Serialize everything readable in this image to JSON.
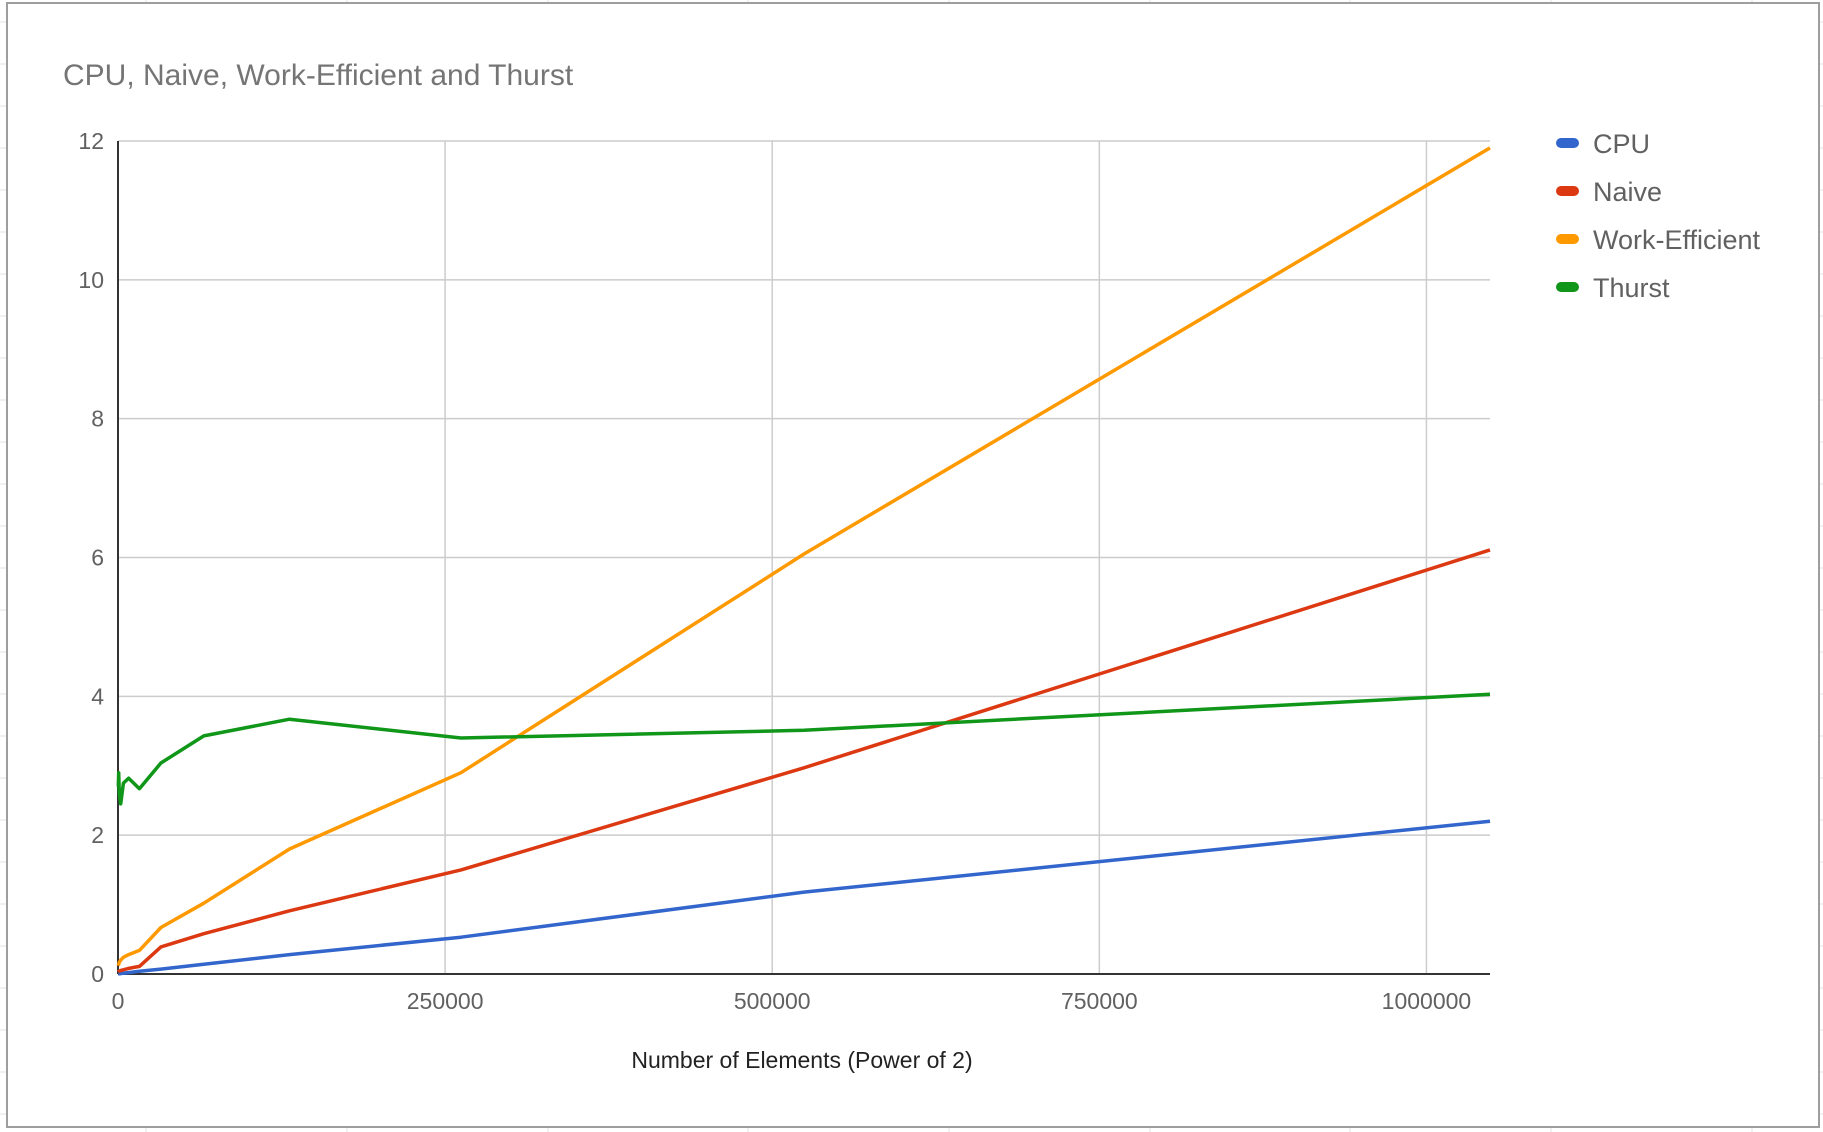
{
  "chart_data": {
    "type": "line",
    "title": "CPU, Naive, Work-Efficient and Thurst",
    "xlabel": "Number of Elements (Power of 2)",
    "ylabel": "",
    "xlim": [
      0,
      1048576
    ],
    "ylim": [
      0,
      12
    ],
    "x_ticks": [
      "0",
      "250000",
      "500000",
      "750000",
      "1000000"
    ],
    "y_ticks": [
      "0",
      "2",
      "4",
      "6",
      "8",
      "10",
      "12"
    ],
    "grid": true,
    "legend_position": "right",
    "x": [
      256,
      512,
      1024,
      2048,
      4096,
      8192,
      16384,
      32768,
      65536,
      131072,
      262144,
      524288,
      1048576
    ],
    "series": [
      {
        "name": "CPU",
        "color": "#3366cc",
        "values": [
          0.001,
          0.002,
          0.003,
          0.006,
          0.012,
          0.02,
          0.04,
          0.07,
          0.14,
          0.28,
          0.53,
          1.18,
          2.2
        ]
      },
      {
        "name": "Naive",
        "color": "#dc3912",
        "values": [
          0.03,
          0.04,
          0.04,
          0.05,
          0.06,
          0.08,
          0.11,
          0.39,
          0.58,
          0.91,
          1.5,
          2.97,
          6.11
        ]
      },
      {
        "name": "Work-Efficient",
        "color": "#ff9900",
        "values": [
          0.12,
          0.14,
          0.17,
          0.2,
          0.24,
          0.28,
          0.34,
          0.67,
          1.02,
          1.8,
          2.9,
          6.05,
          11.9
        ]
      },
      {
        "name": "Thurst",
        "color": "#109618",
        "values": [
          2.7,
          2.9,
          2.6,
          2.45,
          2.75,
          2.82,
          2.67,
          3.04,
          3.43,
          3.67,
          3.4,
          3.51,
          4.03
        ]
      }
    ]
  }
}
